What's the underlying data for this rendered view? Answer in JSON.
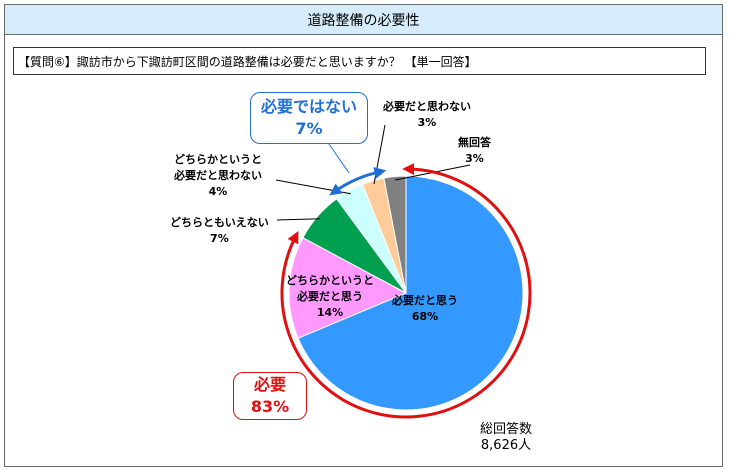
{
  "header": {
    "title": "道路整備の必要性"
  },
  "question": "【質問⑥】諏訪市から下諏訪町区間の道路整備は必要だと思いますか？ 【単一回答】",
  "chart_data": {
    "type": "pie",
    "start_angle_deg": 0,
    "direction": "clockwise",
    "slices": [
      {
        "label_lines": [
          "必要だと思う"
        ],
        "value": 68,
        "value_label": "68%",
        "color": "#3399ff"
      },
      {
        "label_lines": [
          "どちらかというと",
          "必要だと思う"
        ],
        "value": 14,
        "value_label": "14%",
        "color": "#ff99ff"
      },
      {
        "label_lines": [
          "どちらともいえない"
        ],
        "value": 7,
        "value_label": "7%",
        "color": "#00a050"
      },
      {
        "label_lines": [
          "どちらかというと",
          "必要だと思わない"
        ],
        "value": 4,
        "value_label": "4%",
        "color": "#ccffff"
      },
      {
        "label_lines": [
          "必要だと思わない"
        ],
        "value": 3,
        "value_label": "3%",
        "color": "#ffcc99"
      },
      {
        "label_lines": [
          "無回答"
        ],
        "value": 3,
        "value_label": "3%",
        "color": "#808080"
      }
    ],
    "groups": [
      {
        "label": "必要",
        "value_label": "83%",
        "color": "#e01010",
        "slices": [
          0,
          1
        ]
      },
      {
        "label": "必要ではない",
        "value_label": "7%",
        "color": "#1f6fd6",
        "slices": [
          3,
          4
        ]
      }
    ],
    "total": {
      "label": "総回答数",
      "value": "8,626人"
    }
  }
}
